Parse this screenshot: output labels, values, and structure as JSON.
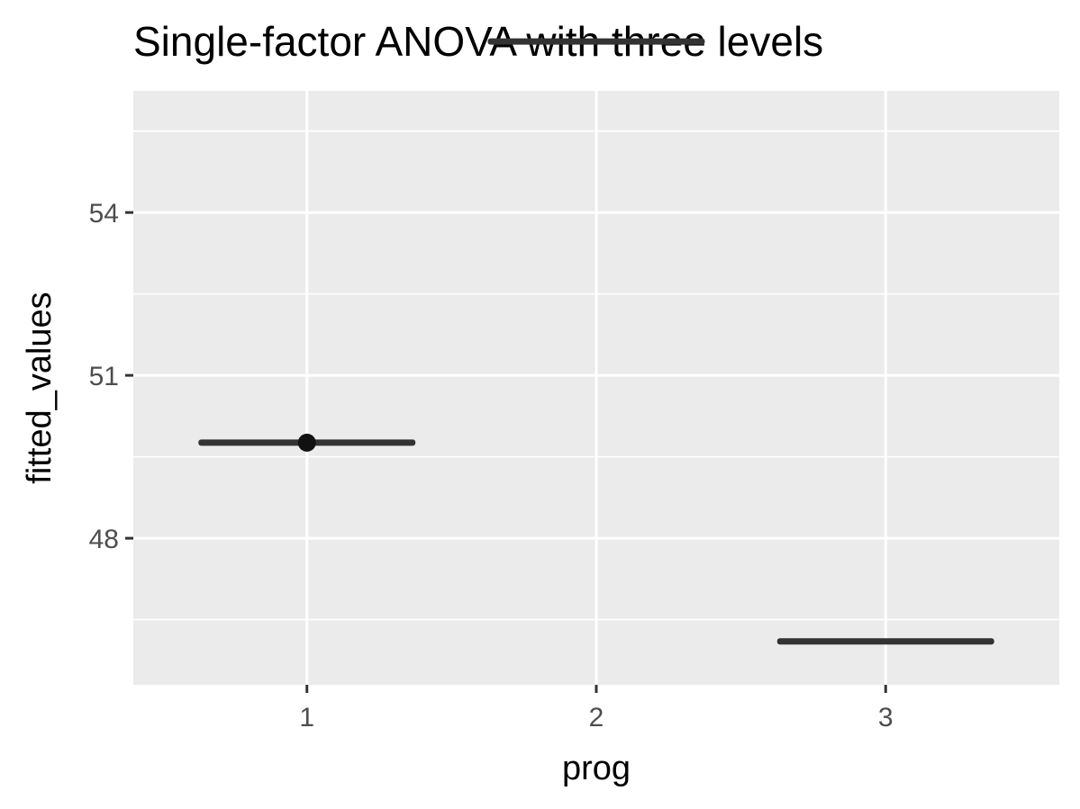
{
  "chart_data": {
    "type": "boxplot",
    "title": "Single-factor ANOVA with three levels",
    "xlabel": "prog",
    "ylabel": "fitted_values",
    "categories": [
      "1",
      "2",
      "3"
    ],
    "ylim": [
      45.3,
      56.24
    ],
    "y_ticks": [
      48,
      51,
      54
    ],
    "y_tick_labels": [
      "48",
      "51",
      "54"
    ],
    "grid": true,
    "panel_background": "#ebebeb",
    "box_color": "#333333",
    "series": [
      {
        "values": [
          49.76,
          57.15,
          46.1
        ],
        "outliers": [
          [
            49.76
          ],
          [],
          []
        ]
      }
    ]
  }
}
